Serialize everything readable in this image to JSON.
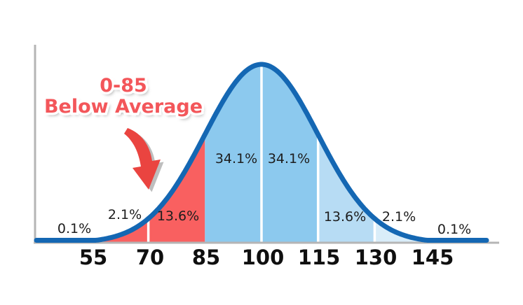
{
  "chart_data": {
    "type": "area",
    "curve": "normal-distribution-bell",
    "title": "",
    "mean": 100,
    "std_dev": 15,
    "x_ticks": [
      "55",
      "70",
      "85",
      "100",
      "115",
      "130",
      "145"
    ],
    "percent_labels": [
      {
        "value": "0.1%",
        "side": "left",
        "placement": "outside-curve"
      },
      {
        "value": "2.1%",
        "side": "left",
        "placement": "outside-curve"
      },
      {
        "value": "13.6%",
        "side": "left",
        "placement": "inside-fill"
      },
      {
        "value": "34.1%",
        "side": "left-of-mean",
        "placement": "inside-fill"
      },
      {
        "value": "34.1%",
        "side": "right-of-mean",
        "placement": "inside-fill"
      },
      {
        "value": "13.6%",
        "side": "right",
        "placement": "inside-fill"
      },
      {
        "value": "2.1%",
        "side": "right",
        "placement": "outside-curve"
      },
      {
        "value": "0.1%",
        "side": "right",
        "placement": "outside-curve"
      }
    ],
    "bands": [
      {
        "name": "below-85",
        "from": null,
        "to": 85,
        "color": "#f96060"
      },
      {
        "name": "85-115",
        "from": 85,
        "to": 115,
        "color": "#8cc9ee"
      },
      {
        "name": "115-130",
        "from": 115,
        "to": 130,
        "color": "#b7dcf4"
      },
      {
        "name": "above-130",
        "from": 130,
        "to": null,
        "color": "#d9edf9"
      }
    ],
    "dividers_at": [
      70,
      100,
      115,
      130
    ],
    "annotation": {
      "line1": "0-85",
      "line2": "Below Average",
      "color": "#f3565a",
      "arrow": "curved-down-arrow"
    },
    "colors": {
      "curve_stroke": "#1467b3",
      "axis": "#b5b5b5",
      "divider": "#ffffff",
      "arrow_fill": "#ea4440",
      "arrow_shadow": "#a8a8a8",
      "tick_text": "#0f0f0f",
      "percent_text": "#1d1d1d"
    }
  }
}
